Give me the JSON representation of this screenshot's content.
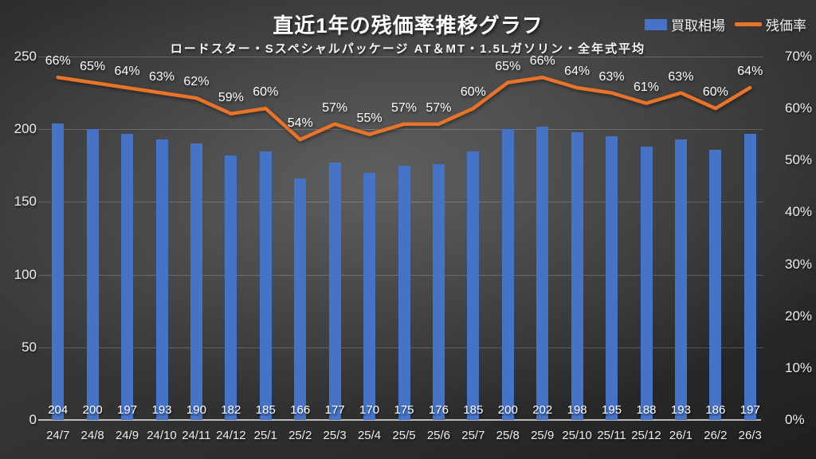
{
  "header": {
    "title": "直近1年の残価率推移グラフ",
    "subtitle": "ロードスター・Sスペシャルパッケージ AT＆MT・1.5Lガソリン・全年式平均"
  },
  "legend": {
    "bar_label": "買取相場",
    "line_label": "残価率"
  },
  "colors": {
    "bar": "#4673C6",
    "line": "#E8732A"
  },
  "chart_data": {
    "type": "bar+line",
    "title": "直近1年の残価率推移グラフ",
    "subtitle": "ロードスター・Sスペシャルパッケージ AT＆MT・1.5Lガソリン・全年式平均",
    "categories": [
      "24/7",
      "24/8",
      "24/9",
      "24/10",
      "24/11",
      "24/12",
      "25/1",
      "25/2",
      "25/3",
      "25/4",
      "25/5",
      "25/6",
      "25/7",
      "25/8",
      "25/9",
      "25/10",
      "25/11",
      "25/12",
      "26/1",
      "26/2",
      "26/3"
    ],
    "series": [
      {
        "name": "買取相場",
        "type": "bar",
        "axis": "left",
        "color": "#4673C6",
        "values": [
          204,
          200,
          197,
          193,
          190,
          182,
          185,
          166,
          177,
          170,
          175,
          176,
          185,
          200,
          202,
          198,
          195,
          188,
          193,
          186,
          197
        ]
      },
      {
        "name": "残価率",
        "type": "line",
        "axis": "right",
        "color": "#E8732A",
        "unit": "%",
        "values": [
          66,
          65,
          64,
          63,
          62,
          59,
          60,
          54,
          57,
          55,
          57,
          57,
          60,
          65,
          66,
          64,
          63,
          61,
          63,
          60,
          64
        ]
      }
    ],
    "left_axis": {
      "min": 0,
      "max": 250,
      "ticks": [
        0,
        50,
        100,
        150,
        200,
        250
      ]
    },
    "right_axis": {
      "min": 0,
      "max": 70,
      "ticks": [
        "0%",
        "10%",
        "20%",
        "30%",
        "40%",
        "50%",
        "60%",
        "70%"
      ]
    },
    "grid": true,
    "legend_position": "top-right"
  }
}
